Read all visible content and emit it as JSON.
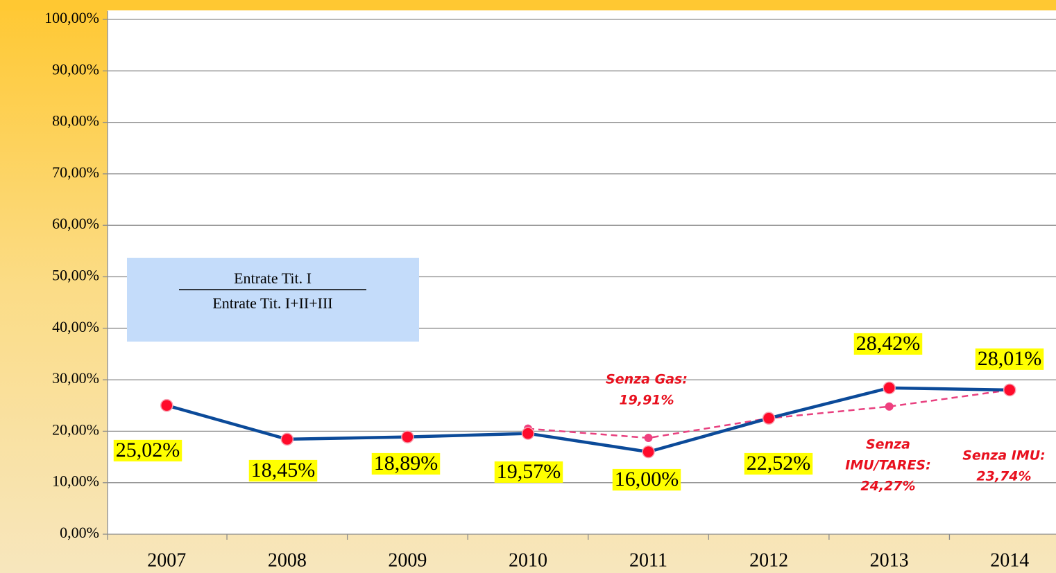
{
  "chart_data": {
    "type": "line",
    "categories": [
      "2007",
      "2008",
      "2009",
      "2010",
      "2011",
      "2012",
      "2013",
      "2014"
    ],
    "series": [
      {
        "color": "#0b4a99",
        "marker_color": "#ff0a2a",
        "dashed": false,
        "values": [
          25.02,
          18.45,
          18.89,
          19.57,
          16.0,
          22.52,
          28.42,
          28.01
        ],
        "value_labels": [
          "25,02%",
          "18,45%",
          "18,89%",
          "19,57%",
          "16,00%",
          "22,52%",
          "28,42%",
          "28,01%"
        ]
      },
      {
        "color": "#e8407f",
        "marker_color": "#f0407f",
        "dashed": true,
        "values": [
          null,
          null,
          null,
          20.5,
          18.7,
          22.52,
          24.8,
          28.01
        ]
      }
    ],
    "ylim": [
      0,
      100
    ],
    "yticks": [
      {
        "value": 0,
        "label": "0,00%"
      },
      {
        "value": 10,
        "label": "10,00%"
      },
      {
        "value": 20,
        "label": "20,00%"
      },
      {
        "value": 30,
        "label": "30,00%"
      },
      {
        "value": 40,
        "label": "40,00%"
      },
      {
        "value": 50,
        "label": "50,00%"
      },
      {
        "value": 60,
        "label": "60,00%"
      },
      {
        "value": 70,
        "label": "70,00%"
      },
      {
        "value": 80,
        "label": "80,00%"
      },
      {
        "value": 90,
        "label": "90,00%"
      },
      {
        "value": 100,
        "label": "100,00%"
      }
    ],
    "grid": true,
    "annotations": [
      [
        "Senza Gas:",
        "19,91%"
      ],
      [
        "Senza",
        "IMU/TARES:",
        "24,27%"
      ],
      [
        "Senza IMU:",
        "23,74%"
      ]
    ],
    "formula": {
      "numerator": "Entrate Tit. I",
      "denominator": "Entrate Tit. I+II+III"
    }
  }
}
